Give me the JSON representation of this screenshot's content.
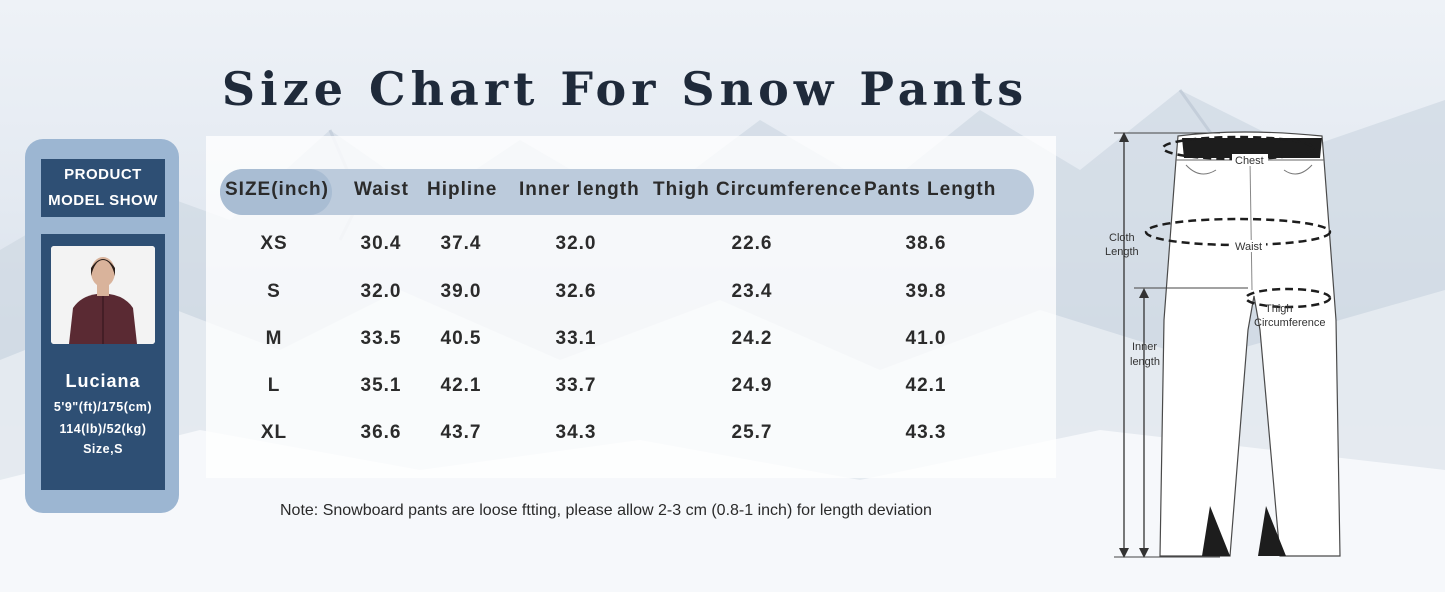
{
  "title": "Size Chart For Snow Pants",
  "model": {
    "header_line1": "PRODUCT",
    "header_line2": "MODEL SHOW",
    "name": "Luciana",
    "height": "5'9\"(ft)/175(cm)",
    "weight": "114(lb)/52(kg)",
    "size": "Size,S"
  },
  "table": {
    "headers": [
      "SIZE(inch)",
      "Waist",
      "Hipline",
      "Inner length",
      "Thigh Circumference",
      "Pants Length"
    ],
    "rows": [
      [
        "XS",
        "30.4",
        "37.4",
        "32.0",
        "22.6",
        "38.6"
      ],
      [
        "S",
        "32.0",
        "39.0",
        "32.6",
        "23.4",
        "39.8"
      ],
      [
        "M",
        "33.5",
        "40.5",
        "33.1",
        "24.2",
        "41.0"
      ],
      [
        "L",
        "35.1",
        "42.1",
        "33.7",
        "24.9",
        "42.1"
      ],
      [
        "XL",
        "36.6",
        "43.7",
        "34.3",
        "25.7",
        "43.3"
      ]
    ]
  },
  "note": "Note: Snowboard pants are loose ftting, please allow 2-3 cm (0.8-1 inch) for length deviation",
  "diagram": {
    "chest": "Chest",
    "cloth_length_1": "Cloth",
    "cloth_length_2": "Length",
    "waist": "Waist",
    "thigh_1": "Thigh",
    "thigh_2": "Circumference",
    "inner_1": "Inner",
    "inner_2": "length"
  },
  "colors": {
    "panel_dark": "#2e4f74",
    "panel_light": "#9cb6d2",
    "header_pill": "#bccbdc"
  }
}
